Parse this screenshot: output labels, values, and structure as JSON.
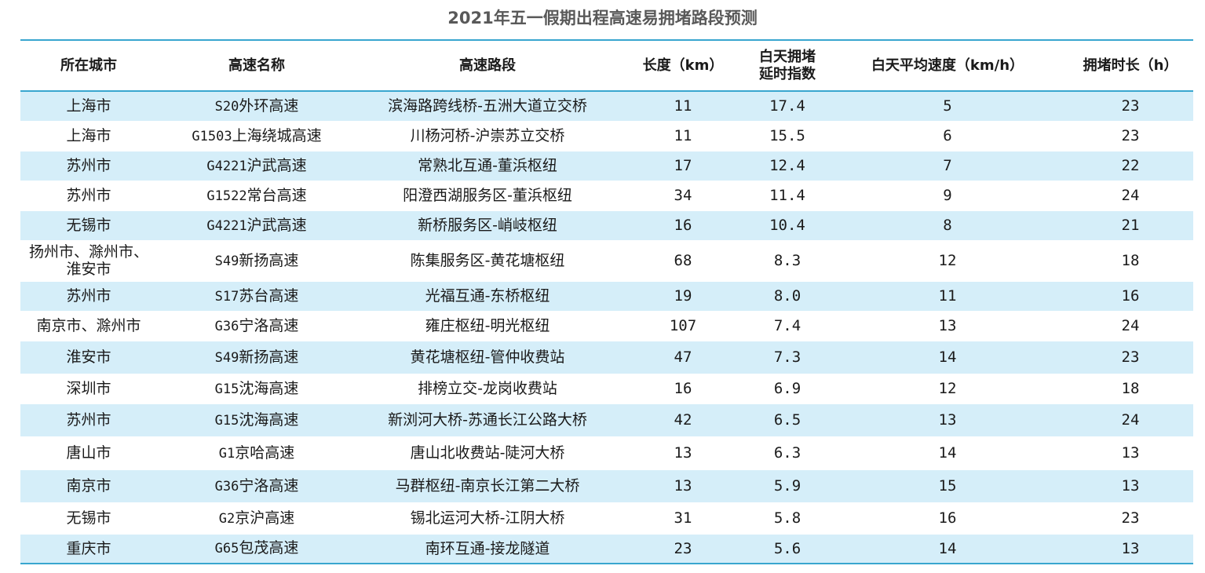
{
  "title": "2021年五一假期出程高速易拥堵路段预测",
  "chart_data": {
    "type": "table",
    "title": "2021年五一假期出程高速易拥堵路段预测",
    "columns": [
      "所在城市",
      "高速名称",
      "高速路段",
      "长度（km）",
      "白天拥堵延时指数",
      "白天平均速度（km/h）",
      "拥堵时长（h）"
    ],
    "column_lines": [
      [
        "所在城市"
      ],
      [
        "高速名称"
      ],
      [
        "高速路段"
      ],
      [
        "长度（km）"
      ],
      [
        "白天拥堵",
        "延时指数"
      ],
      [
        "白天平均速度（km/h）"
      ],
      [
        "拥堵时长（h）"
      ]
    ],
    "rows": [
      {
        "city": "上海市",
        "code": "S20",
        "name": "外环高速",
        "segment": "滨海路跨线桥-五洲大道立交桥",
        "length": "11",
        "index": "17.4",
        "speed": "5",
        "hours": "23"
      },
      {
        "city": "上海市",
        "code": "G1503",
        "name": "上海绕城高速",
        "segment": "川杨河桥-沪崇苏立交桥",
        "length": "11",
        "index": "15.5",
        "speed": "6",
        "hours": "23"
      },
      {
        "city": "苏州市",
        "code": "G4221",
        "name": "沪武高速",
        "segment": "常熟北互通-董浜枢纽",
        "length": "17",
        "index": "12.4",
        "speed": "7",
        "hours": "22"
      },
      {
        "city": "苏州市",
        "code": "G1522",
        "name": "常台高速",
        "segment": "阳澄西湖服务区-董浜枢纽",
        "length": "34",
        "index": "11.4",
        "speed": "9",
        "hours": "24"
      },
      {
        "city": "无锡市",
        "code": "G4221",
        "name": "沪武高速",
        "segment": "新桥服务区-峭岐枢纽",
        "length": "16",
        "index": "10.4",
        "speed": "8",
        "hours": "21"
      },
      {
        "city": "扬州市、滁州市、淮安市",
        "city_lines": [
          "扬州市、滁州市、",
          "淮安市"
        ],
        "code": "S49",
        "name": "新扬高速",
        "segment": "陈集服务区-黄花塘枢纽",
        "length": "68",
        "index": "8.3",
        "speed": "12",
        "hours": "18"
      },
      {
        "city": "苏州市",
        "code": "S17",
        "name": "苏台高速",
        "segment": "光福互通-东桥枢纽",
        "length": "19",
        "index": "8.0",
        "speed": "11",
        "hours": "16"
      },
      {
        "city": "南京市、滁州市",
        "code": "G36",
        "name": "宁洛高速",
        "segment": "雍庄枢纽-明光枢纽",
        "length": "107",
        "index": "7.4",
        "speed": "13",
        "hours": "24"
      },
      {
        "city": "淮安市",
        "code": "S49",
        "name": "新扬高速",
        "segment": "黄花塘枢纽-管仲收费站",
        "length": "47",
        "index": "7.3",
        "speed": "14",
        "hours": "23"
      },
      {
        "city": "深圳市",
        "code": "G15",
        "name": "沈海高速",
        "segment": "排榜立交-龙岗收费站",
        "length": "16",
        "index": "6.9",
        "speed": "12",
        "hours": "18"
      },
      {
        "city": "苏州市",
        "code": "G15",
        "name": "沈海高速",
        "segment": "新浏河大桥-苏通长江公路大桥",
        "length": "42",
        "index": "6.5",
        "speed": "13",
        "hours": "24"
      },
      {
        "city": "唐山市",
        "code": "G1",
        "name": "京哈高速",
        "segment": "唐山北收费站-陡河大桥",
        "length": "13",
        "index": "6.3",
        "speed": "14",
        "hours": "13"
      },
      {
        "city": "南京市",
        "code": "G36",
        "name": "宁洛高速",
        "segment": "马群枢纽-南京长江第二大桥",
        "length": "13",
        "index": "5.9",
        "speed": "15",
        "hours": "13"
      },
      {
        "city": "无锡市",
        "code": "G2",
        "name": "京沪高速",
        "segment": "锡北运河大桥-江阴大桥",
        "length": "31",
        "index": "5.8",
        "speed": "16",
        "hours": "23"
      },
      {
        "city": "重庆市",
        "code": "G65",
        "name": "包茂高速",
        "segment": "南环互通-接龙隧道",
        "length": "23",
        "index": "5.6",
        "speed": "14",
        "hours": "13"
      }
    ]
  },
  "colors": {
    "accent_line": "#39a6cf",
    "row_shade": "#d5eef9",
    "title_text": "#595959"
  }
}
